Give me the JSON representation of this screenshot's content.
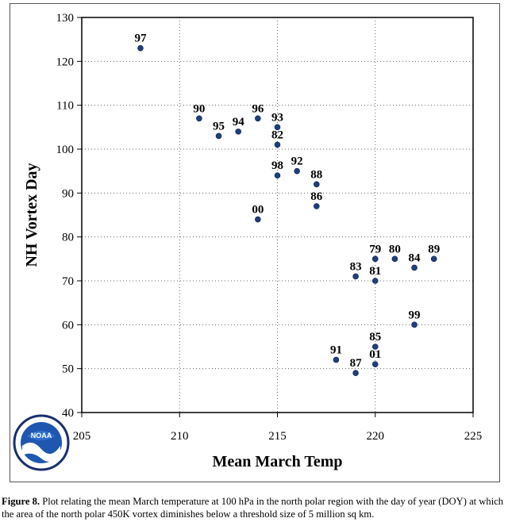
{
  "chart_data": {
    "type": "scatter",
    "xlabel": "Mean March Temp",
    "ylabel": "NH Vortex Day",
    "xlim": [
      205,
      225
    ],
    "ylim": [
      40,
      130
    ],
    "xticks": [
      205,
      210,
      215,
      220,
      225
    ],
    "yticks": [
      40,
      50,
      60,
      70,
      80,
      90,
      100,
      110,
      120,
      130
    ],
    "grid": "dotted",
    "points": [
      {
        "label": "97",
        "x": 208,
        "y": 123,
        "color": "#1f3f7a"
      },
      {
        "label": "90",
        "x": 211,
        "y": 107,
        "color": "#1f3f7a"
      },
      {
        "label": "95",
        "x": 212,
        "y": 103,
        "color": "#1f3f7a"
      },
      {
        "label": "94",
        "x": 213,
        "y": 104,
        "color": "#1f3f7a"
      },
      {
        "label": "96",
        "x": 214,
        "y": 107,
        "color": "#1f3f7a"
      },
      {
        "label": "93",
        "x": 215,
        "y": 105,
        "color": "#1f3f7a"
      },
      {
        "label": "82",
        "x": 215,
        "y": 101,
        "color": "#1f3f7a"
      },
      {
        "label": "98",
        "x": 215,
        "y": 94,
        "color": "#1f3f7a"
      },
      {
        "label": "92",
        "x": 216,
        "y": 95,
        "color": "#1f3f7a"
      },
      {
        "label": "88",
        "x": 217,
        "y": 92,
        "color": "#1f3f7a"
      },
      {
        "label": "86",
        "x": 217,
        "y": 87,
        "color": "#1f3f7a"
      },
      {
        "label": "00",
        "x": 214,
        "y": 84,
        "color": "#1f3f7a"
      },
      {
        "label": "79",
        "x": 220,
        "y": 75,
        "color": "#1f3f7a"
      },
      {
        "label": "80",
        "x": 221,
        "y": 75,
        "color": "#1f3f7a"
      },
      {
        "label": "89",
        "x": 223,
        "y": 75,
        "color": "#1f3f7a"
      },
      {
        "label": "84",
        "x": 222,
        "y": 73,
        "color": "#1f3f7a"
      },
      {
        "label": "83",
        "x": 219,
        "y": 71,
        "color": "#1f3f7a"
      },
      {
        "label": "81",
        "x": 220,
        "y": 70,
        "color": "#1f3f7a"
      },
      {
        "label": "99",
        "x": 222,
        "y": 60,
        "color": "#1f3f7a"
      },
      {
        "label": "85",
        "x": 220,
        "y": 55,
        "color": "#1f3f7a"
      },
      {
        "label": "91",
        "x": 218,
        "y": 52,
        "color": "#1f3f7a"
      },
      {
        "label": "01",
        "x": 220,
        "y": 51,
        "color": "#1f3f7a",
        "label_color": "#d42020"
      },
      {
        "label": "87",
        "x": 219,
        "y": 49,
        "color": "#1f3f7a"
      }
    ]
  },
  "logo": {
    "text": "NOAA"
  },
  "caption": {
    "label": "Figure 8.",
    "text": "Plot relating the mean March temperature at 100 hPa  in the  north polar region with the day of year (DOY) at which the area of the north polar 450K vortex diminishes below a threshold  size of 5 million sq km."
  }
}
